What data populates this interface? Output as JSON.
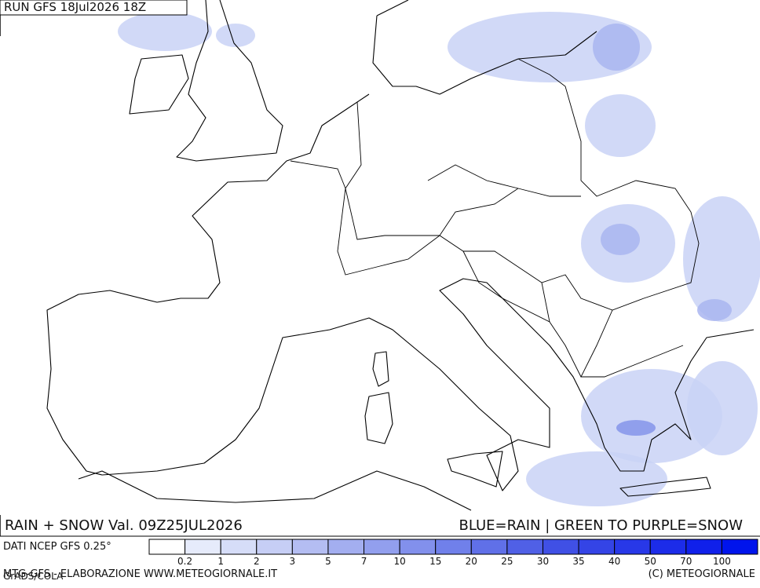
{
  "header": {
    "run": "RUN GFS 18Jul2026 18Z"
  },
  "footer": {
    "title": "RAIN + SNOW Val. 09Z25JUL2026",
    "legend_note": "BLUE=RAIN | GREEN TO PURPLE=SNOW",
    "source": "DATI NCEP GFS 0.25°",
    "credit_left": "MTG-GFS - ELABORAZIONE WWW.METEOGIORNALE.IT",
    "credit_right": "(C) METEOGIORNALE",
    "grads": "GrADS/COLA"
  },
  "colorbar": {
    "levels": [
      0.2,
      1,
      2,
      3,
      5,
      7,
      10,
      15,
      20,
      25,
      30,
      35,
      40,
      50,
      70,
      100
    ],
    "colors": [
      "#ffffff",
      "#e6ebfb",
      "#d6ddf8",
      "#c6cef5",
      "#b4bdf2",
      "#a3aef0",
      "#929fee",
      "#8290ec",
      "#7080ea",
      "#6070e8",
      "#5060e6",
      "#4050e5",
      "#3444e6",
      "#2838e8",
      "#1c2ce9",
      "#1020ea",
      "#0014ec"
    ]
  }
}
